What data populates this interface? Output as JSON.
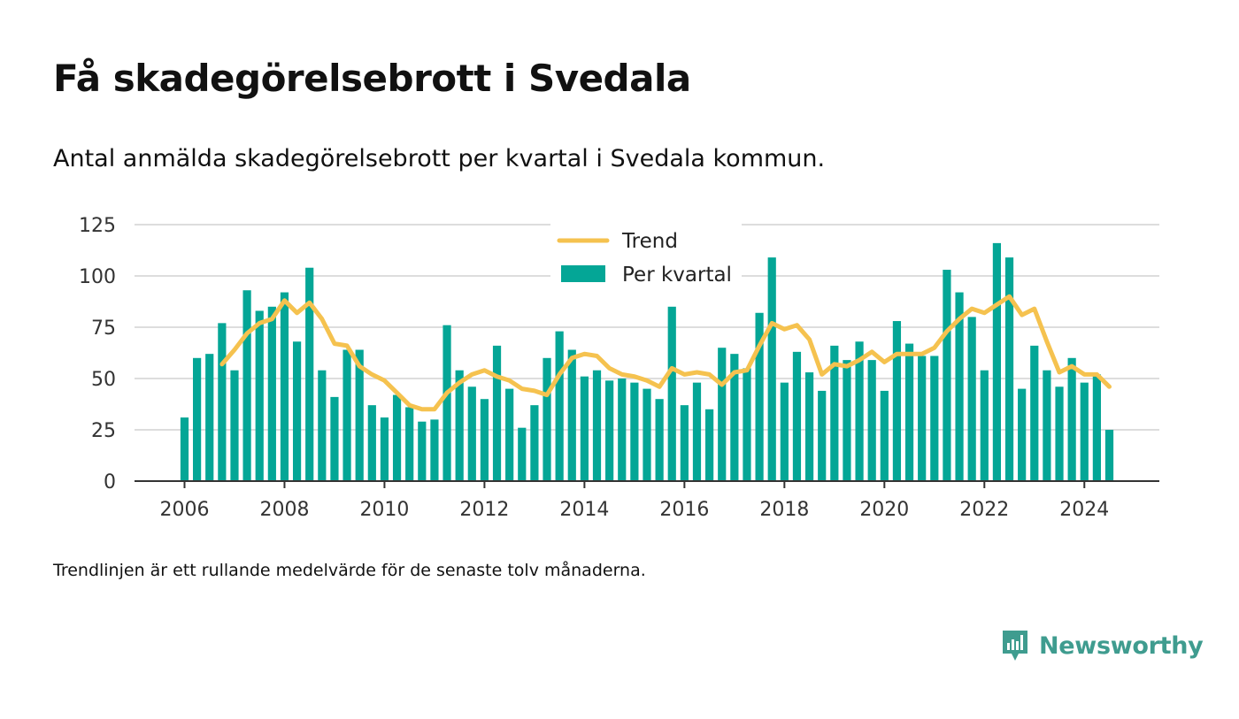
{
  "title": "Få skadegörelsebrott i Svedala",
  "subtitle": "Antal anmälda skadegörelsebrott per kvartal i Svedala kommun.",
  "note": "Trendlinjen är ett rullande medelvärde för de senaste tolv månaderna.",
  "brand": "Newsworthy",
  "colors": {
    "bar": "#04a696",
    "trend": "#f5c24f",
    "axis": "#333333",
    "grid": "#dddddd",
    "brand": "#3f9c8f"
  },
  "chart_data": {
    "type": "bar",
    "title": "",
    "xlabel": "",
    "ylabel": "",
    "ylim": [
      0,
      125
    ],
    "yticks": [
      0,
      25,
      50,
      75,
      100,
      125
    ],
    "xlim": [
      2005,
      2025.5
    ],
    "xticks": [
      "2006",
      "2008",
      "2010",
      "2012",
      "2014",
      "2016",
      "2018",
      "2020",
      "2022",
      "2024"
    ],
    "grid": true,
    "legend_position": "top-center",
    "x": [
      "2006Q1",
      "2006Q2",
      "2006Q3",
      "2006Q4",
      "2007Q1",
      "2007Q2",
      "2007Q3",
      "2007Q4",
      "2008Q1",
      "2008Q2",
      "2008Q3",
      "2008Q4",
      "2009Q1",
      "2009Q2",
      "2009Q3",
      "2009Q4",
      "2010Q1",
      "2010Q2",
      "2010Q3",
      "2010Q4",
      "2011Q1",
      "2011Q2",
      "2011Q3",
      "2011Q4",
      "2012Q1",
      "2012Q2",
      "2012Q3",
      "2012Q4",
      "2013Q1",
      "2013Q2",
      "2013Q3",
      "2013Q4",
      "2014Q1",
      "2014Q2",
      "2014Q3",
      "2014Q4",
      "2015Q1",
      "2015Q2",
      "2015Q3",
      "2015Q4",
      "2016Q1",
      "2016Q2",
      "2016Q3",
      "2016Q4",
      "2017Q1",
      "2017Q2",
      "2017Q3",
      "2017Q4",
      "2018Q1",
      "2018Q2",
      "2018Q3",
      "2018Q4",
      "2019Q1",
      "2019Q2",
      "2019Q3",
      "2019Q4",
      "2020Q1",
      "2020Q2",
      "2020Q3",
      "2020Q4",
      "2021Q1",
      "2021Q2",
      "2021Q3",
      "2021Q4",
      "2022Q1",
      "2022Q2",
      "2022Q3",
      "2022Q4",
      "2023Q1",
      "2023Q2",
      "2023Q3",
      "2023Q4",
      "2024Q1",
      "2024Q2",
      "2024Q3"
    ],
    "series": [
      {
        "name": "Per kvartal",
        "type": "bar",
        "values": [
          31,
          60,
          62,
          77,
          54,
          93,
          83,
          85,
          92,
          68,
          104,
          54,
          41,
          64,
          64,
          37,
          31,
          42,
          36,
          29,
          30,
          76,
          54,
          46,
          40,
          66,
          45,
          26,
          37,
          60,
          73,
          64,
          51,
          54,
          49,
          50,
          48,
          45,
          40,
          85,
          37,
          48,
          35,
          65,
          62,
          55,
          82,
          109,
          48,
          63,
          53,
          44,
          66,
          59,
          68,
          59,
          44,
          78,
          67,
          61,
          61,
          103,
          92,
          80,
          54,
          116,
          109,
          45,
          66,
          54,
          46,
          60,
          48,
          52,
          25
        ]
      },
      {
        "name": "Trend",
        "type": "line",
        "values": [
          null,
          null,
          null,
          57,
          64,
          72,
          77,
          79,
          88,
          82,
          87,
          79,
          67,
          66,
          56,
          52,
          49,
          43,
          37,
          35,
          35,
          43,
          48,
          52,
          54,
          51,
          49,
          45,
          44,
          42,
          52,
          60,
          62,
          61,
          55,
          52,
          51,
          49,
          46,
          55,
          52,
          53,
          52,
          47,
          53,
          54,
          66,
          77,
          74,
          76,
          69,
          52,
          57,
          56,
          59,
          63,
          58,
          62,
          62,
          62,
          65,
          73,
          79,
          84,
          82,
          86,
          90,
          81,
          84,
          68,
          53,
          56,
          52,
          52,
          46
        ]
      }
    ]
  }
}
